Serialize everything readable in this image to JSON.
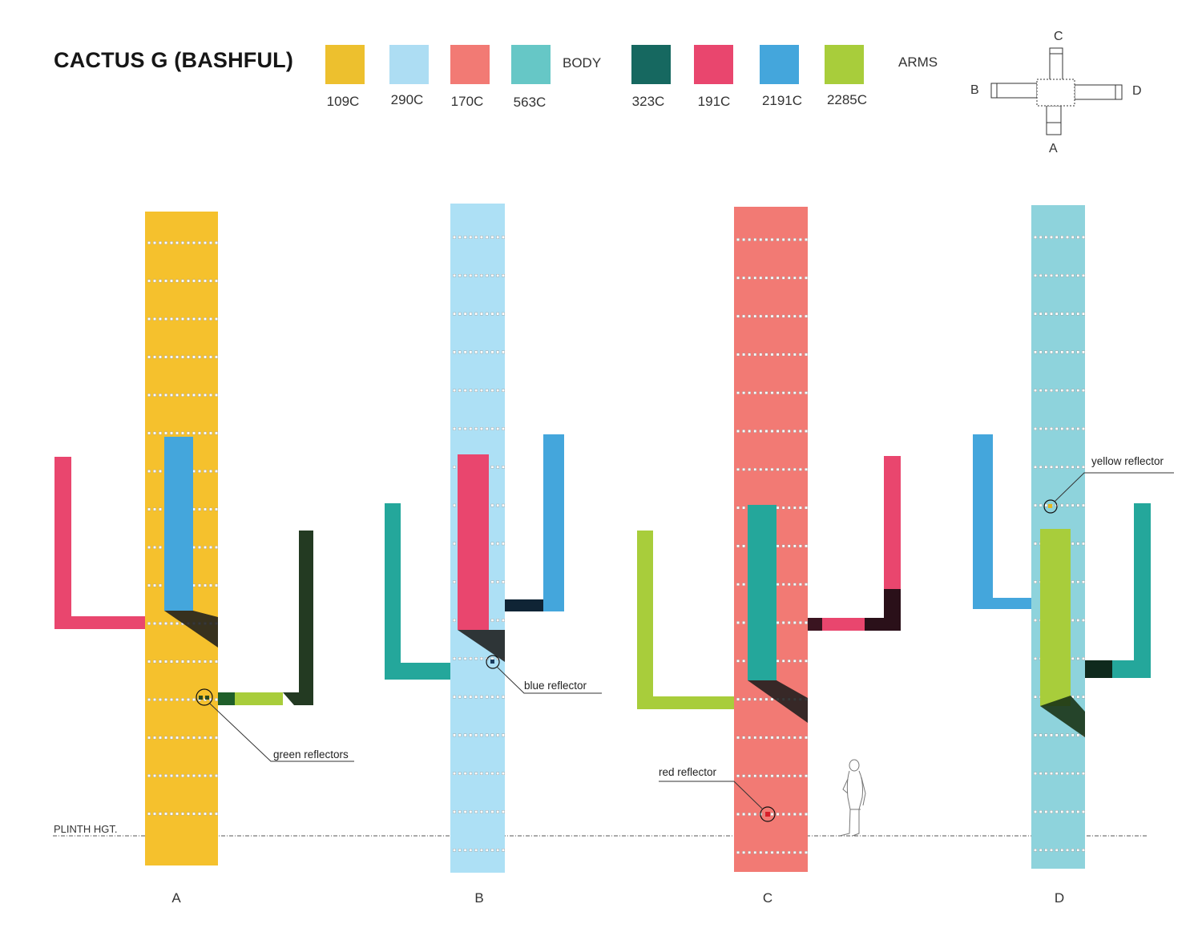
{
  "title": "CACTUS G (BASHFUL)",
  "legend": {
    "body_label": "BODY",
    "arms_label": "ARMS",
    "body_colors": [
      {
        "code": "109C",
        "hex": "#EDC02E"
      },
      {
        "code": "290C",
        "hex": "#ADDDF3"
      },
      {
        "code": "170C",
        "hex": "#F27A74"
      },
      {
        "code": "563C",
        "hex": "#66C7C6"
      }
    ],
    "arm_colors": [
      {
        "code": "323C",
        "hex": "#166860"
      },
      {
        "code": "191C",
        "hex": "#E9466E"
      },
      {
        "code": "2191C",
        "hex": "#44A6DC"
      },
      {
        "code": "2285C",
        "hex": "#A8CD3B"
      }
    ]
  },
  "orientation_key": {
    "top": "C",
    "left": "B",
    "right": "D",
    "bottom": "A"
  },
  "views": [
    {
      "label": "A",
      "body_hex": "#F5C12D",
      "callout": "green reflectors"
    },
    {
      "label": "B",
      "body_hex": "#ADE0F5",
      "callout": "blue reflector"
    },
    {
      "label": "C",
      "body_hex": "#F27A74",
      "callout": "red reflector"
    },
    {
      "label": "D",
      "body_hex": "#8ED3DC",
      "callout": "yellow reflector"
    }
  ],
  "plinth_label": "PLINTH HGT."
}
